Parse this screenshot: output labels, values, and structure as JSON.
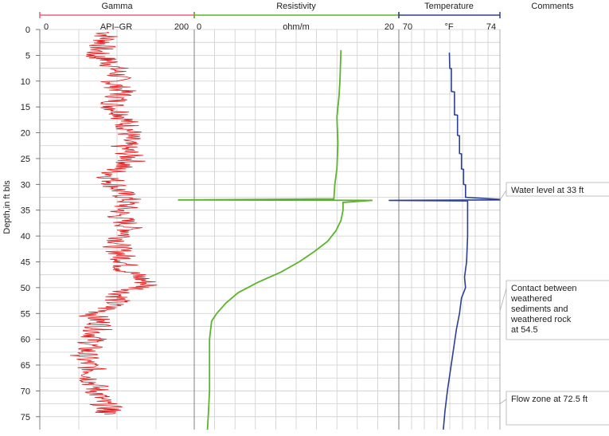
{
  "chart_data": {
    "type": "line",
    "y_axis": {
      "label": "Depth,in ft bls",
      "range": [
        0,
        77.5
      ],
      "reversed": true,
      "ticks": [
        0,
        5,
        10,
        15,
        20,
        25,
        30,
        35,
        40,
        45,
        50,
        55,
        60,
        65,
        70,
        75
      ]
    },
    "grid": true,
    "tracks": [
      {
        "name": "Gamma",
        "units": "API–GR",
        "range": [
          0,
          200
        ],
        "tick_labels": [
          "0",
          "200"
        ],
        "color": "#e8607a",
        "series_color": "#e31a1c",
        "series": [
          {
            "depth": 0.5,
            "value": 88
          },
          {
            "depth": 2,
            "value": 86
          },
          {
            "depth": 3.5,
            "value": 80
          },
          {
            "depth": 5,
            "value": 70
          },
          {
            "depth": 6,
            "value": 90
          },
          {
            "depth": 7.5,
            "value": 98
          },
          {
            "depth": 9,
            "value": 102
          },
          {
            "depth": 10.5,
            "value": 96
          },
          {
            "depth": 12,
            "value": 108
          },
          {
            "depth": 13.5,
            "value": 100
          },
          {
            "depth": 15,
            "value": 95
          },
          {
            "depth": 16.5,
            "value": 110
          },
          {
            "depth": 18,
            "value": 112
          },
          {
            "depth": 19.5,
            "value": 118
          },
          {
            "depth": 21,
            "value": 114
          },
          {
            "depth": 22.5,
            "value": 108
          },
          {
            "depth": 24,
            "value": 115
          },
          {
            "depth": 25.5,
            "value": 120
          },
          {
            "depth": 27,
            "value": 100
          },
          {
            "depth": 28.5,
            "value": 92
          },
          {
            "depth": 30,
            "value": 98
          },
          {
            "depth": 31.5,
            "value": 105
          },
          {
            "depth": 33,
            "value": 115
          },
          {
            "depth": 34.5,
            "value": 110
          },
          {
            "depth": 36,
            "value": 102
          },
          {
            "depth": 37.5,
            "value": 112
          },
          {
            "depth": 39,
            "value": 118
          },
          {
            "depth": 40.5,
            "value": 108
          },
          {
            "depth": 42,
            "value": 100
          },
          {
            "depth": 43.5,
            "value": 106
          },
          {
            "depth": 45,
            "value": 112
          },
          {
            "depth": 46.5,
            "value": 110
          },
          {
            "depth": 48,
            "value": 130
          },
          {
            "depth": 49.5,
            "value": 142
          },
          {
            "depth": 51,
            "value": 108
          },
          {
            "depth": 52.5,
            "value": 100
          },
          {
            "depth": 54,
            "value": 88
          },
          {
            "depth": 55.5,
            "value": 70
          },
          {
            "depth": 57,
            "value": 80
          },
          {
            "depth": 58.5,
            "value": 74
          },
          {
            "depth": 60,
            "value": 70
          },
          {
            "depth": 61.5,
            "value": 64
          },
          {
            "depth": 63,
            "value": 58
          },
          {
            "depth": 64.5,
            "value": 60
          },
          {
            "depth": 66,
            "value": 70
          },
          {
            "depth": 67.5,
            "value": 66
          },
          {
            "depth": 69,
            "value": 72
          },
          {
            "depth": 70.5,
            "value": 76
          },
          {
            "depth": 72,
            "value": 78
          },
          {
            "depth": 73.5,
            "value": 92
          },
          {
            "depth": 74.5,
            "value": 84
          }
        ]
      },
      {
        "name": "Resistivity",
        "units": "ohm/m",
        "range": [
          0,
          20
        ],
        "tick_labels": [
          "0",
          "20"
        ],
        "color": "#5ab52d",
        "series_color": "#5ab52d",
        "series": [
          {
            "depth": 4,
            "value": 14.4
          },
          {
            "depth": 10,
            "value": 14.3
          },
          {
            "depth": 13,
            "value": 14.2
          },
          {
            "depth": 17,
            "value": 14.0
          },
          {
            "depth": 22,
            "value": 14.1
          },
          {
            "depth": 27,
            "value": 14.0
          },
          {
            "depth": 30,
            "value": 13.8
          },
          {
            "depth": 32.8,
            "value": 13.7
          },
          {
            "depth": 33,
            "value": -1.6
          },
          {
            "depth": 33.1,
            "value": 17.5
          },
          {
            "depth": 33.5,
            "value": 14.6
          },
          {
            "depth": 35,
            "value": 14.6
          },
          {
            "depth": 37,
            "value": 14.4
          },
          {
            "depth": 39,
            "value": 13.9
          },
          {
            "depth": 41,
            "value": 13.1
          },
          {
            "depth": 43,
            "value": 11.8
          },
          {
            "depth": 45,
            "value": 10.3
          },
          {
            "depth": 47,
            "value": 8.5
          },
          {
            "depth": 49,
            "value": 6.2
          },
          {
            "depth": 51,
            "value": 4.3
          },
          {
            "depth": 53,
            "value": 3.1
          },
          {
            "depth": 55,
            "value": 2.2
          },
          {
            "depth": 56.5,
            "value": 1.7
          },
          {
            "depth": 60,
            "value": 1.5
          },
          {
            "depth": 65,
            "value": 1.5
          },
          {
            "depth": 70,
            "value": 1.5
          },
          {
            "depth": 74,
            "value": 1.4
          },
          {
            "depth": 77.5,
            "value": 1.3
          }
        ]
      },
      {
        "name": "Temperature",
        "units": "°F",
        "range": [
          69.5,
          74.5
        ],
        "tick_labels": [
          "70",
          "74"
        ],
        "color": "#2b3f94",
        "series_color": "#2b3f94",
        "series": [
          {
            "depth": 4.5,
            "value": 72.0
          },
          {
            "depth": 7.5,
            "value": 72.02
          },
          {
            "depth": 7.6,
            "value": 72.1
          },
          {
            "depth": 12,
            "value": 72.1
          },
          {
            "depth": 12.1,
            "value": 72.25
          },
          {
            "depth": 16.5,
            "value": 72.25
          },
          {
            "depth": 16.6,
            "value": 72.4
          },
          {
            "depth": 20.5,
            "value": 72.4
          },
          {
            "depth": 20.6,
            "value": 72.5
          },
          {
            "depth": 24,
            "value": 72.5
          },
          {
            "depth": 24.1,
            "value": 72.6
          },
          {
            "depth": 27,
            "value": 72.6
          },
          {
            "depth": 27.1,
            "value": 72.7
          },
          {
            "depth": 30,
            "value": 72.7
          },
          {
            "depth": 30.1,
            "value": 72.8
          },
          {
            "depth": 32.5,
            "value": 72.8
          },
          {
            "depth": 32.9,
            "value": 74.5
          },
          {
            "depth": 33,
            "value": 74.5
          },
          {
            "depth": 33.1,
            "value": 69.0
          },
          {
            "depth": 33.2,
            "value": 72.9
          },
          {
            "depth": 40,
            "value": 72.9
          },
          {
            "depth": 45,
            "value": 72.85
          },
          {
            "depth": 48,
            "value": 72.75
          },
          {
            "depth": 50,
            "value": 72.8
          },
          {
            "depth": 52,
            "value": 72.6
          },
          {
            "depth": 55,
            "value": 72.5
          },
          {
            "depth": 58,
            "value": 72.35
          },
          {
            "depth": 62,
            "value": 72.2
          },
          {
            "depth": 66,
            "value": 72.05
          },
          {
            "depth": 70,
            "value": 71.9
          },
          {
            "depth": 74,
            "value": 71.78
          },
          {
            "depth": 77.5,
            "value": 71.7
          }
        ]
      },
      {
        "name": "Comments",
        "annotations": [
          {
            "text": "Water level at 33 ft",
            "depth": 33
          },
          {
            "text": "Contact between weathered sediments and weathered rock at 54.5",
            "depth": 54.5
          },
          {
            "text": "Flow zone at 72.5 ft",
            "depth": 72.5
          }
        ]
      }
    ]
  }
}
